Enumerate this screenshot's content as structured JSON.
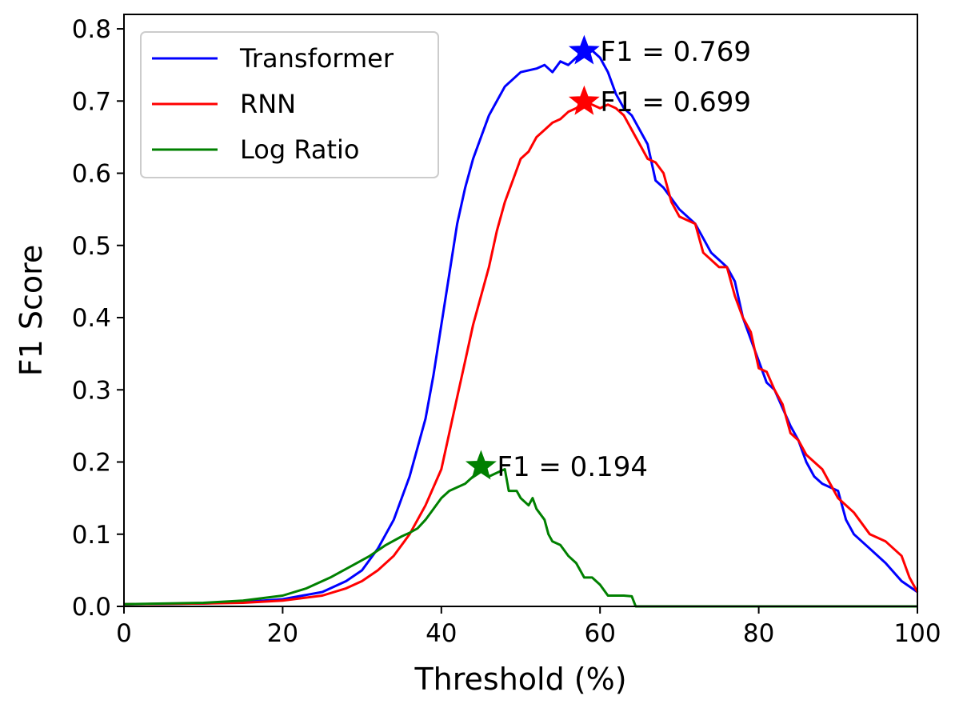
{
  "chart_data": {
    "type": "line",
    "title": "",
    "xlabel": "Threshold (%)",
    "ylabel": "F1 Score",
    "xlim": [
      0,
      100
    ],
    "ylim": [
      0,
      0.82
    ],
    "xticks": [
      0,
      20,
      40,
      60,
      80,
      100
    ],
    "yticks": [
      0.0,
      0.1,
      0.2,
      0.3,
      0.4,
      0.5,
      0.6,
      0.7,
      0.8
    ],
    "xtick_labels": [
      "0",
      "20",
      "40",
      "60",
      "80",
      "100"
    ],
    "ytick_labels": [
      "0.0",
      "0.1",
      "0.2",
      "0.3",
      "0.4",
      "0.5",
      "0.6",
      "0.7",
      "0.8"
    ],
    "grid": false,
    "legend_position": "upper-left",
    "series": [
      {
        "name": "Transformer",
        "color": "#0000ff",
        "points": [
          [
            0,
            0.003
          ],
          [
            10,
            0.004
          ],
          [
            15,
            0.006
          ],
          [
            20,
            0.01
          ],
          [
            25,
            0.02
          ],
          [
            28,
            0.035
          ],
          [
            30,
            0.05
          ],
          [
            32,
            0.08
          ],
          [
            34,
            0.12
          ],
          [
            36,
            0.18
          ],
          [
            38,
            0.26
          ],
          [
            39,
            0.32
          ],
          [
            40,
            0.39
          ],
          [
            41,
            0.46
          ],
          [
            42,
            0.53
          ],
          [
            43,
            0.58
          ],
          [
            44,
            0.62
          ],
          [
            45,
            0.65
          ],
          [
            46,
            0.68
          ],
          [
            47,
            0.7
          ],
          [
            48,
            0.72
          ],
          [
            49,
            0.73
          ],
          [
            50,
            0.74
          ],
          [
            52,
            0.745
          ],
          [
            53,
            0.75
          ],
          [
            54,
            0.74
          ],
          [
            55,
            0.755
          ],
          [
            56,
            0.75
          ],
          [
            57,
            0.76
          ],
          [
            58,
            0.769
          ],
          [
            59,
            0.77
          ],
          [
            60,
            0.76
          ],
          [
            61,
            0.74
          ],
          [
            62,
            0.71
          ],
          [
            63,
            0.69
          ],
          [
            64,
            0.68
          ],
          [
            66,
            0.64
          ],
          [
            67,
            0.59
          ],
          [
            68,
            0.58
          ],
          [
            70,
            0.55
          ],
          [
            72,
            0.53
          ],
          [
            73,
            0.51
          ],
          [
            74,
            0.49
          ],
          [
            76,
            0.47
          ],
          [
            77,
            0.45
          ],
          [
            78,
            0.4
          ],
          [
            79,
            0.37
          ],
          [
            80,
            0.34
          ],
          [
            81,
            0.31
          ],
          [
            82,
            0.3
          ],
          [
            84,
            0.25
          ],
          [
            85,
            0.23
          ],
          [
            86,
            0.2
          ],
          [
            87,
            0.18
          ],
          [
            88,
            0.17
          ],
          [
            90,
            0.16
          ],
          [
            91,
            0.12
          ],
          [
            92,
            0.1
          ],
          [
            94,
            0.08
          ],
          [
            96,
            0.06
          ],
          [
            98,
            0.035
          ],
          [
            100,
            0.02
          ]
        ]
      },
      {
        "name": "RNN",
        "color": "#ff0000",
        "points": [
          [
            0,
            0.003
          ],
          [
            10,
            0.004
          ],
          [
            15,
            0.005
          ],
          [
            20,
            0.008
          ],
          [
            25,
            0.015
          ],
          [
            28,
            0.025
          ],
          [
            30,
            0.035
          ],
          [
            32,
            0.05
          ],
          [
            34,
            0.07
          ],
          [
            36,
            0.1
          ],
          [
            38,
            0.14
          ],
          [
            40,
            0.19
          ],
          [
            41,
            0.24
          ],
          [
            42,
            0.29
          ],
          [
            43,
            0.34
          ],
          [
            44,
            0.39
          ],
          [
            45,
            0.43
          ],
          [
            46,
            0.47
          ],
          [
            47,
            0.52
          ],
          [
            48,
            0.56
          ],
          [
            49,
            0.59
          ],
          [
            50,
            0.62
          ],
          [
            51,
            0.63
          ],
          [
            52,
            0.65
          ],
          [
            53,
            0.66
          ],
          [
            54,
            0.67
          ],
          [
            55,
            0.675
          ],
          [
            56,
            0.685
          ],
          [
            57,
            0.69
          ],
          [
            58,
            0.699
          ],
          [
            59,
            0.695
          ],
          [
            60,
            0.69
          ],
          [
            61,
            0.695
          ],
          [
            62,
            0.69
          ],
          [
            63,
            0.68
          ],
          [
            64,
            0.66
          ],
          [
            65,
            0.64
          ],
          [
            66,
            0.62
          ],
          [
            67,
            0.615
          ],
          [
            68,
            0.6
          ],
          [
            69,
            0.56
          ],
          [
            70,
            0.54
          ],
          [
            72,
            0.53
          ],
          [
            73,
            0.49
          ],
          [
            74,
            0.48
          ],
          [
            75,
            0.47
          ],
          [
            76,
            0.47
          ],
          [
            77,
            0.43
          ],
          [
            78,
            0.4
          ],
          [
            79,
            0.38
          ],
          [
            80,
            0.33
          ],
          [
            81,
            0.325
          ],
          [
            82,
            0.3
          ],
          [
            83,
            0.28
          ],
          [
            84,
            0.24
          ],
          [
            85,
            0.23
          ],
          [
            86,
            0.21
          ],
          [
            87,
            0.2
          ],
          [
            88,
            0.19
          ],
          [
            89,
            0.17
          ],
          [
            90,
            0.15
          ],
          [
            92,
            0.13
          ],
          [
            94,
            0.1
          ],
          [
            96,
            0.09
          ],
          [
            98,
            0.07
          ],
          [
            99,
            0.04
          ],
          [
            100,
            0.02
          ]
        ]
      },
      {
        "name": "Log Ratio",
        "color": "#008000",
        "points": [
          [
            0,
            0.003
          ],
          [
            10,
            0.005
          ],
          [
            15,
            0.008
          ],
          [
            20,
            0.015
          ],
          [
            23,
            0.025
          ],
          [
            26,
            0.04
          ],
          [
            29,
            0.058
          ],
          [
            31,
            0.07
          ],
          [
            33,
            0.085
          ],
          [
            35,
            0.097
          ],
          [
            36,
            0.102
          ],
          [
            37,
            0.108
          ],
          [
            38,
            0.12
          ],
          [
            39,
            0.135
          ],
          [
            40,
            0.15
          ],
          [
            41,
            0.16
          ],
          [
            42,
            0.165
          ],
          [
            43,
            0.17
          ],
          [
            44,
            0.18
          ],
          [
            45,
            0.194
          ],
          [
            46,
            0.18
          ],
          [
            47,
            0.185
          ],
          [
            48,
            0.19
          ],
          [
            48.5,
            0.16
          ],
          [
            49.5,
            0.16
          ],
          [
            50,
            0.15
          ],
          [
            51,
            0.14
          ],
          [
            51.5,
            0.15
          ],
          [
            52,
            0.135
          ],
          [
            53,
            0.12
          ],
          [
            53.5,
            0.1
          ],
          [
            54,
            0.09
          ],
          [
            55,
            0.085
          ],
          [
            56,
            0.07
          ],
          [
            57,
            0.06
          ],
          [
            57.5,
            0.05
          ],
          [
            58,
            0.04
          ],
          [
            59,
            0.04
          ],
          [
            60,
            0.03
          ],
          [
            61,
            0.015
          ],
          [
            62,
            0.015
          ],
          [
            63,
            0.015
          ],
          [
            64,
            0.014
          ],
          [
            64.5,
            0.0
          ],
          [
            100,
            0.0
          ]
        ]
      }
    ],
    "annotations": [
      {
        "series": "Transformer",
        "x": 58,
        "y": 0.769,
        "text": "F1 = 0.769",
        "color": "#0000ff"
      },
      {
        "series": "RNN",
        "x": 58,
        "y": 0.699,
        "text": "F1 = 0.699",
        "color": "#ff0000"
      },
      {
        "series": "Log Ratio",
        "x": 45,
        "y": 0.194,
        "text": "F1 = 0.194",
        "color": "#008000"
      }
    ]
  }
}
